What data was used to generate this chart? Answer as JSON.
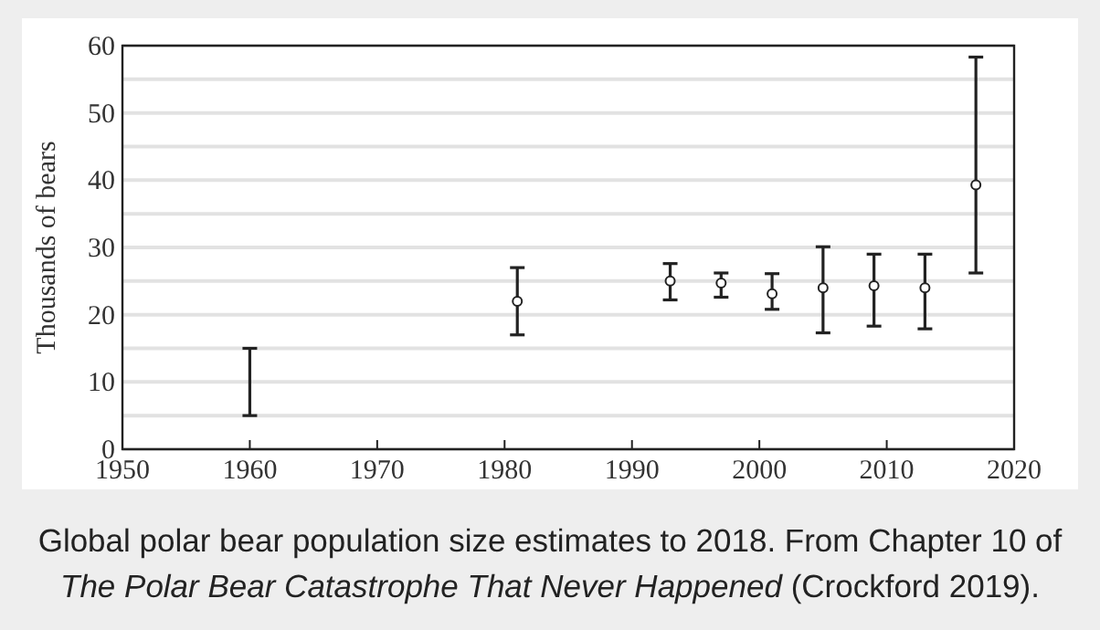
{
  "chart_data": {
    "type": "scatter",
    "ylabel": "Thousands of bears",
    "series": [
      {
        "type": "bar",
        "color": "#222222",
        "x": [
          1960
        ],
        "base": [
          5
        ],
        "values": [
          10
        ]
      },
      {
        "color": "#222222",
        "marker": "circle",
        "x": [
          1981,
          1993,
          1997,
          2001,
          2005,
          2009,
          2013,
          2017
        ],
        "values": [
          22,
          25,
          24.7,
          23.1,
          24,
          24.3,
          24,
          39.3
        ],
        "errors": [
          [
            17,
            27
          ],
          [
            22.2,
            27.6
          ],
          [
            22.6,
            26.2
          ],
          [
            20.8,
            26.1
          ],
          [
            17.3,
            30.1
          ],
          [
            18.3,
            29
          ],
          [
            17.9,
            29
          ],
          [
            26.2,
            58.3
          ]
        ]
      }
    ],
    "xlim": [
      1950,
      2020
    ],
    "xticks": [
      1950,
      1960,
      1970,
      1980,
      1990,
      2000,
      2010,
      2020
    ],
    "ylim": [
      0,
      60
    ],
    "yticks": [
      0,
      {
        "value": 5,
        "label": null
      },
      10,
      {
        "value": 15,
        "label": null
      },
      20,
      {
        "value": 25,
        "label": null
      },
      30,
      {
        "value": 35,
        "label": null
      },
      40,
      {
        "value": 45,
        "label": null
      },
      50,
      {
        "value": 55,
        "label": null
      },
      60
    ],
    "grid": "y",
    "annotations": [
      "Global polar bear population size estimates to 2018. From Chapter 10 of",
      "The Polar Bear Catastrophe That Never Happened",
      "(Crockford 2019)."
    ]
  }
}
